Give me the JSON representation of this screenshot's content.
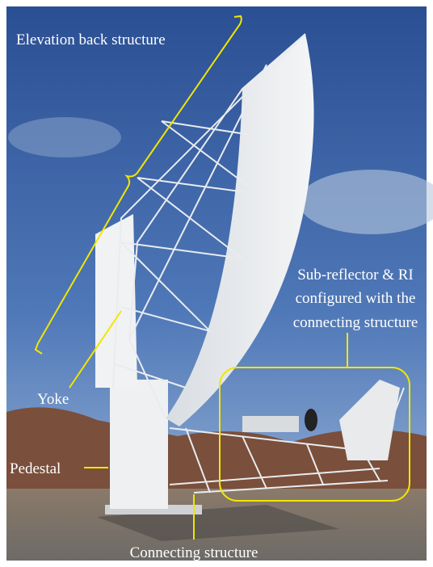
{
  "annotations": {
    "elevation_back_structure": "Elevation back structure",
    "yoke": "Yoke",
    "pedestal": "Pedestal",
    "sub_reflector": [
      "Sub-reflector & RI",
      "configured with the",
      "connecting structure"
    ],
    "connecting_structure": "Connecting structure"
  }
}
